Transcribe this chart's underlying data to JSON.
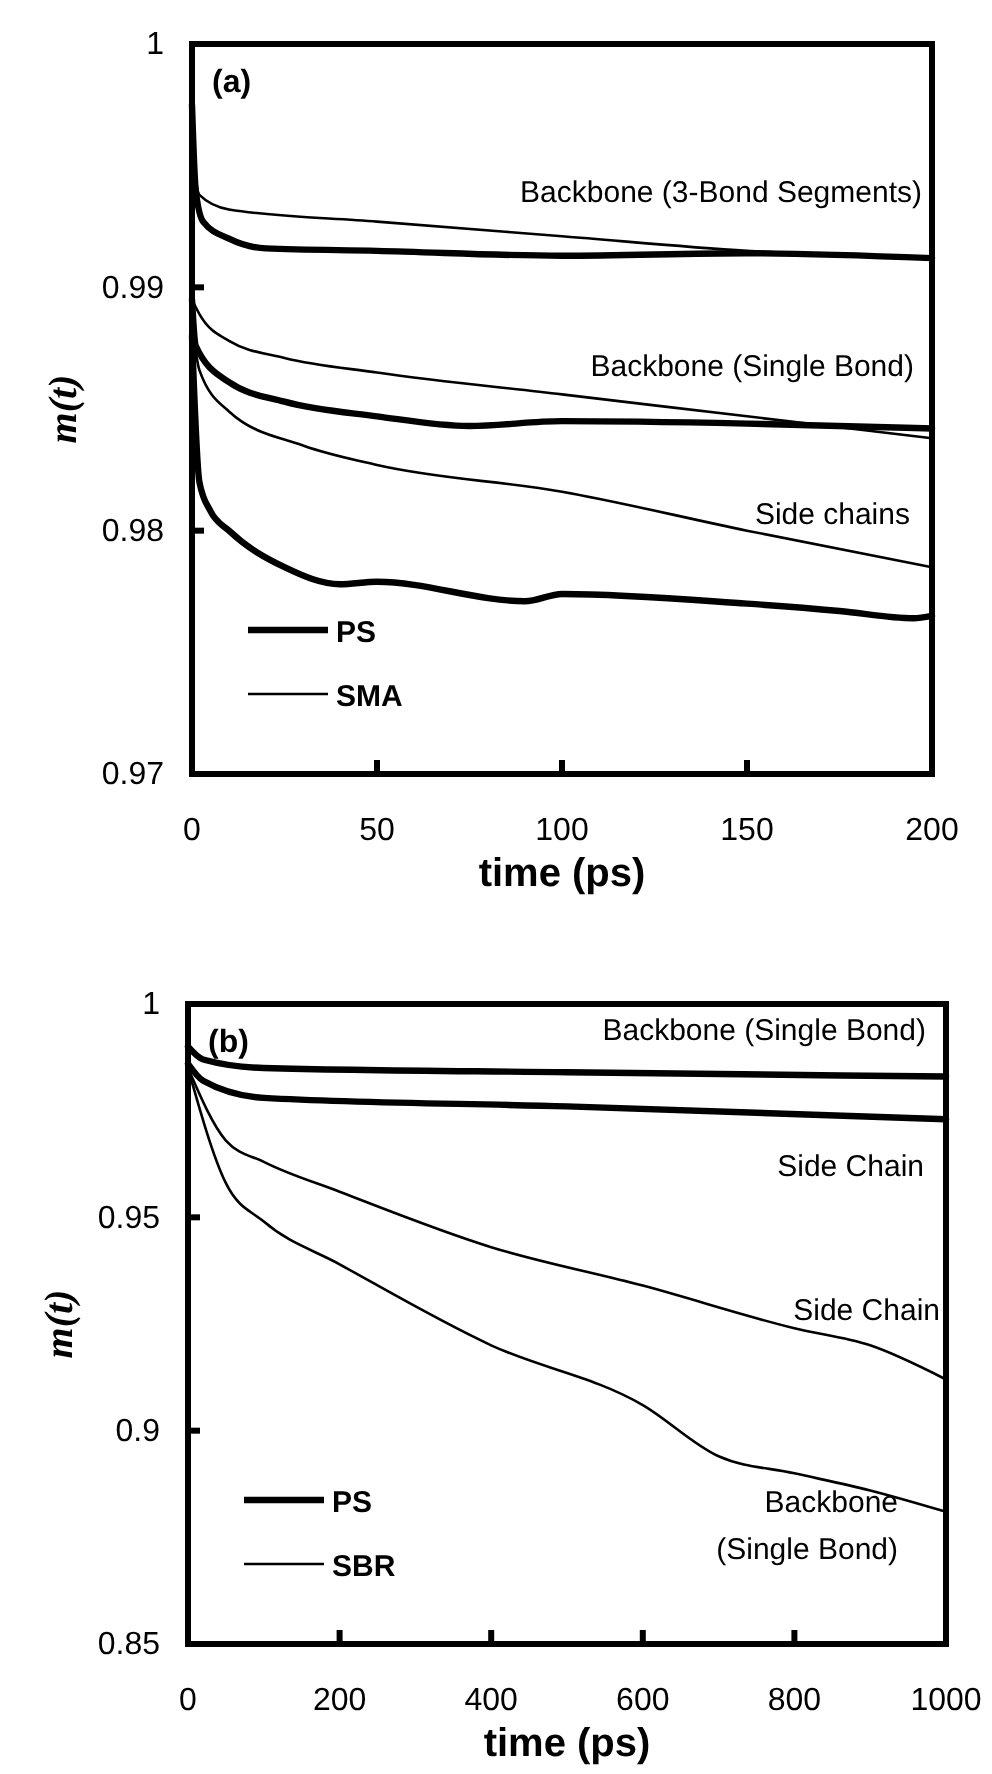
{
  "chart_data": [
    {
      "type": "line",
      "xlabel": "time (ps)",
      "ylabel": "m(t)",
      "xlim": [
        0,
        200
      ],
      "ylim": [
        0.97,
        1
      ],
      "xticks": [
        0,
        50,
        100,
        150,
        200
      ],
      "yticks": [
        0.97,
        0.98,
        0.99,
        1
      ],
      "legend": "bottom left",
      "grid": false,
      "annotations": [
        "(a)",
        "Backbone (3-Bond Segments)",
        "Backbone (Single Bond)",
        "Side chains"
      ],
      "series": [
        {
          "name": "PS",
          "color": "#000000",
          "x": [
            0,
            1,
            3,
            10,
            20,
            50,
            100,
            150,
            200
          ],
          "values": [
            0.9975,
            0.994,
            0.9927,
            0.992,
            0.9916,
            0.9915,
            0.9913,
            0.9914,
            0.9912
          ]
        },
        {
          "name": "SMA",
          "color": "#000000",
          "x": [
            0,
            1,
            2,
            10,
            50,
            100,
            150,
            200
          ],
          "values": [
            0.997,
            0.9945,
            0.9938,
            0.9932,
            0.9927,
            0.9921,
            0.9915,
            0.9912
          ]
        },
        {
          "color": "#000000",
          "x": [
            0,
            1,
            10,
            25,
            50,
            75,
            100,
            150,
            200
          ],
          "values": [
            0.9895,
            0.9876,
            0.9861,
            0.9853,
            0.9847,
            0.9843,
            0.9845,
            0.9844,
            0.9842
          ]
        },
        {
          "color": "#000000",
          "x": [
            0,
            2,
            10,
            25,
            50,
            100,
            150,
            200
          ],
          "values": [
            0.9895,
            0.9889,
            0.9878,
            0.9871,
            0.9865,
            0.9856,
            0.9847,
            0.9838
          ]
        },
        {
          "color": "#000000",
          "x": [
            0,
            2,
            10,
            30,
            50,
            100,
            150,
            200
          ],
          "values": [
            0.9885,
            0.9866,
            0.9849,
            0.9835,
            0.9827,
            0.9816,
            0.98,
            0.9785
          ]
        },
        {
          "color": "#000000",
          "x": [
            0,
            2,
            5,
            10,
            25,
            40,
            50,
            90,
            100,
            150,
            175,
            195,
            200
          ],
          "values": [
            0.988,
            0.982,
            0.9808,
            0.98,
            0.9785,
            0.9778,
            0.9779,
            0.9771,
            0.9774,
            0.977,
            0.9767,
            0.9764,
            0.9765
          ]
        }
      ]
    },
    {
      "type": "line",
      "xlabel": "time (ps)",
      "ylabel": "m(t)",
      "xlim": [
        0,
        1000
      ],
      "ylim": [
        0.85,
        1
      ],
      "xticks": [
        0,
        200,
        400,
        600,
        800,
        1000
      ],
      "yticks": [
        0.85,
        0.9,
        0.95,
        1
      ],
      "legend": "bottom left",
      "grid": false,
      "annotations": [
        "(b)",
        "Backbone (Single Bond)",
        "Side Chain",
        "Side Chain",
        "Backbone\n(Single Bond)"
      ],
      "series": [
        {
          "name": "PS",
          "color": "#000000",
          "x": [
            0,
            20,
            100,
            500,
            1000
          ],
          "values": [
            0.99,
            0.987,
            0.985,
            0.984,
            0.983
          ]
        },
        {
          "name": "SBR",
          "color": "#000000",
          "x": [
            0,
            50,
            100,
            200,
            400,
            600,
            800,
            900,
            1000
          ],
          "values": [
            0.985,
            0.968,
            0.963,
            0.956,
            0.943,
            0.934,
            0.924,
            0.92,
            0.912
          ]
        },
        {
          "color": "#000000",
          "x": [
            0,
            20,
            100,
            500,
            1000
          ],
          "values": [
            0.986,
            0.982,
            0.978,
            0.976,
            0.973
          ]
        },
        {
          "color": "#000000",
          "x": [
            0,
            50,
            100,
            200,
            400,
            600,
            700,
            800,
            900,
            1000
          ],
          "values": [
            0.985,
            0.958,
            0.949,
            0.939,
            0.92,
            0.906,
            0.894,
            0.89,
            0.886,
            0.881
          ]
        }
      ]
    }
  ]
}
